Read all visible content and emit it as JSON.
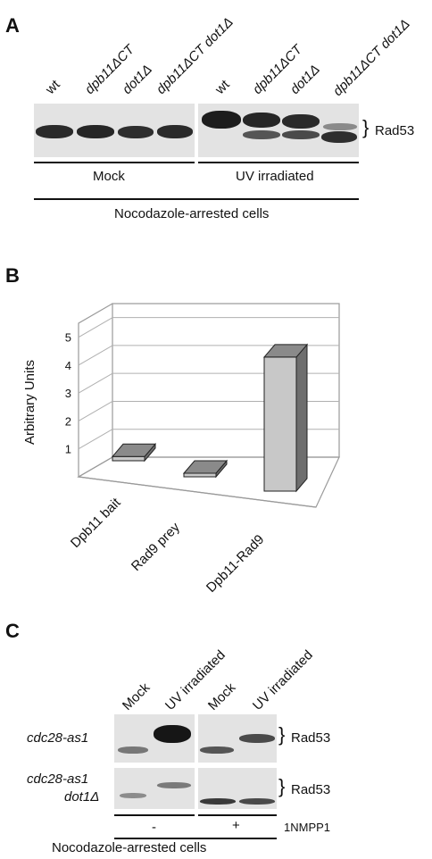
{
  "panel_a": {
    "letter": "A",
    "lanes_mock": [
      "wt",
      "dpb11ΔCT",
      "dot1Δ",
      "dpb11ΔCT dot1Δ"
    ],
    "lanes_uv": [
      "wt",
      "dpb11ΔCT",
      "dot1Δ",
      "dpb11ΔCT dot1Δ"
    ],
    "band_label": "Rad53",
    "group_mock": "Mock",
    "group_uv": "UV irradiated",
    "footer": "Nocodazole-arrested cells"
  },
  "panel_b": {
    "letter": "B",
    "ylabel": "Arbitrary Units",
    "categories": [
      "Dpb11 bait",
      "Rad9 prey",
      "Dpb11-Rad9"
    ]
  },
  "chart_data": {
    "type": "bar",
    "title": "",
    "xlabel": "",
    "ylabel": "Arbitrary Units",
    "categories": [
      "Dpb11 bait",
      "Rad9 prey",
      "Dpb11-Rad9"
    ],
    "values": [
      0.15,
      0.05,
      4.8
    ],
    "ylim": [
      0,
      5.5
    ],
    "yticks": [
      1,
      2,
      3,
      4,
      5
    ],
    "grid": true,
    "style": "3d",
    "colors": {
      "bar_front": "#c8c8c8",
      "bar_top": "#8a8a8a",
      "bar_side": "#6e6e6e"
    }
  },
  "panel_c": {
    "letter": "C",
    "lanes": [
      "Mock",
      "UV irradiated",
      "Mock",
      "UV irradiated"
    ],
    "row1_label": "cdc28-as1",
    "row2_label_line1": "cdc28-as1",
    "row2_label_line2": "dot1Δ",
    "band_label_1": "Rad53",
    "band_label_2": "Rad53",
    "treatment_minus": "-",
    "treatment_plus": "+",
    "treatment_name": "1NMPP1",
    "footer": "Nocodazole-arrested cells"
  }
}
